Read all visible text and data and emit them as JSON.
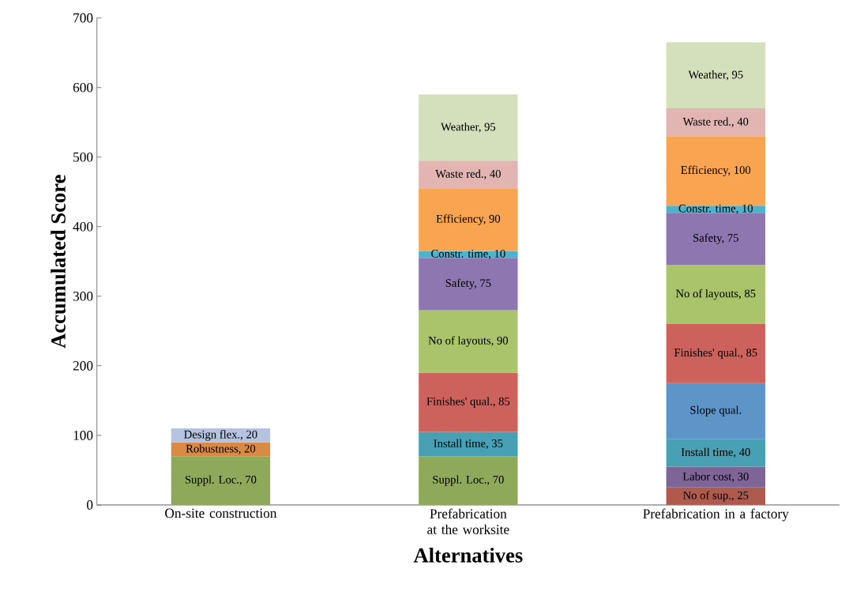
{
  "chart_data": {
    "type": "bar",
    "stacked": true,
    "xlabel": "Alternatives",
    "ylabel": "Accumulated Score",
    "categories": [
      "On-site construction",
      "Prefabrication at the worksite",
      "Prefabrication in a factory"
    ],
    "ylim": [
      0,
      700
    ],
    "yticks": [
      0,
      100,
      200,
      300,
      400,
      500,
      600,
      700
    ],
    "grid": false,
    "series": [
      {
        "color": "#8fa95a",
        "values": [
          70,
          70,
          null
        ],
        "value_labels": [
          "Suppl. Loc., 70",
          "Suppl. Loc., 70",
          null
        ]
      },
      {
        "color": "#b05a4e",
        "values": [
          null,
          null,
          25
        ],
        "value_labels": [
          null,
          null,
          "No of sup., 25"
        ]
      },
      {
        "color": "#7e6497",
        "values": [
          null,
          null,
          30
        ],
        "value_labels": [
          null,
          null,
          "Labor cost, 30"
        ]
      },
      {
        "color": "#d98a45",
        "values": [
          20,
          null,
          null
        ],
        "value_labels": [
          "Robustness, 20",
          null,
          null
        ]
      },
      {
        "color": "#48a0b4",
        "values": [
          null,
          35,
          40
        ],
        "value_labels": [
          null,
          "Install time, 35",
          "Install time, 40"
        ]
      },
      {
        "color": "#b4c3e0",
        "values": [
          20,
          null,
          null
        ],
        "value_labels": [
          "Design flex., 20",
          null,
          null
        ]
      },
      {
        "color": "#5e95c9",
        "values": [
          null,
          null,
          80
        ],
        "value_labels": [
          null,
          null,
          "Slope qual."
        ]
      },
      {
        "color": "#cd625c",
        "values": [
          null,
          85,
          85
        ],
        "value_labels": [
          null,
          "Finishes' qual., 85",
          "Finishes' qual., 85"
        ]
      },
      {
        "color": "#a9c46a",
        "values": [
          null,
          90,
          85
        ],
        "value_labels": [
          null,
          "No of layouts, 90",
          "No of layouts, 85"
        ]
      },
      {
        "color": "#8e76b0",
        "values": [
          null,
          75,
          75
        ],
        "value_labels": [
          null,
          "Safety, 75",
          "Safety, 75"
        ]
      },
      {
        "color": "#4bb4cc",
        "values": [
          null,
          10,
          10
        ],
        "value_labels": [
          null,
          "Constr. time, 10",
          "Constr. time, 10"
        ]
      },
      {
        "color": "#f8a450",
        "values": [
          null,
          90,
          100
        ],
        "value_labels": [
          null,
          "Efficiency, 90",
          "Efficiency, 100"
        ]
      },
      {
        "color": "#e2b5b3",
        "values": [
          null,
          40,
          40
        ],
        "value_labels": [
          null,
          "Waste red., 40",
          "Waste red., 40"
        ]
      },
      {
        "color": "#d4dfbb",
        "values": [
          null,
          95,
          95
        ],
        "value_labels": [
          null,
          "Weather, 95",
          "Weather, 95"
        ]
      }
    ]
  }
}
